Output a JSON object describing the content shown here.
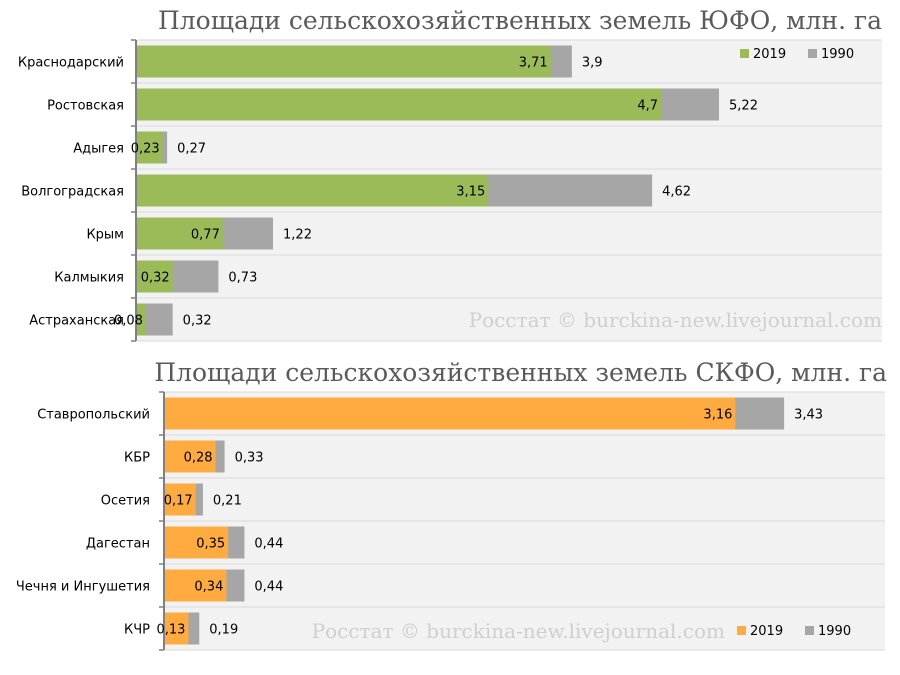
{
  "chart_data": [
    {
      "type": "bar",
      "orientation": "horizontal",
      "stacking": "overlay",
      "title": "Площади сельскохозяйственных земель ЮФО, млн. га",
      "categories": [
        "Краснодарский",
        "Ростовская",
        "Адыгея",
        "Волгоградская",
        "Крым",
        "Калмыкия",
        "Астраханская"
      ],
      "series": [
        {
          "name": "2019",
          "color": "#9bbb59",
          "values": [
            3.71,
            4.7,
            0.23,
            3.15,
            0.77,
            0.32,
            0.08
          ],
          "labels": [
            "3,71",
            "4,7",
            "0,23",
            "3,15",
            "0,77",
            "0,32",
            "0,08"
          ]
        },
        {
          "name": "1990",
          "color": "#a6a6a6",
          "values": [
            3.9,
            5.22,
            0.27,
            4.62,
            1.22,
            0.73,
            0.32
          ],
          "labels": [
            "3,9",
            "5,22",
            "0,27",
            "4,62",
            "1,22",
            "0,73",
            "0,32"
          ]
        }
      ],
      "xlim": [
        0,
        6.6
      ],
      "grid": false,
      "legend": "top-right",
      "watermark": "Росстат © burckina-new.livejournal.com"
    },
    {
      "type": "bar",
      "orientation": "horizontal",
      "stacking": "overlay",
      "title": "Площади сельскохозяйственных земель СКФО, млн. га",
      "categories": [
        "Ставропольский",
        "КБР",
        "Осетия",
        "Дагестан",
        "Чечня и Ингушетия",
        "КЧР"
      ],
      "series": [
        {
          "name": "2019",
          "color": "#ffab40",
          "values": [
            3.16,
            0.28,
            0.17,
            0.35,
            0.34,
            0.13
          ],
          "labels": [
            "3,16",
            "0,28",
            "0,17",
            "0,35",
            "0,34",
            "0,13"
          ]
        },
        {
          "name": "1990",
          "color": "#a6a6a6",
          "values": [
            3.43,
            0.33,
            0.21,
            0.44,
            0.44,
            0.19
          ],
          "labels": [
            "3,43",
            "0,33",
            "0,21",
            "0,44",
            "0,44",
            "0,19"
          ]
        }
      ],
      "xlim": [
        0,
        4.0
      ],
      "grid": false,
      "legend": "bottom-right",
      "watermark": "Росстат © burckina-new.livejournal.com"
    }
  ]
}
